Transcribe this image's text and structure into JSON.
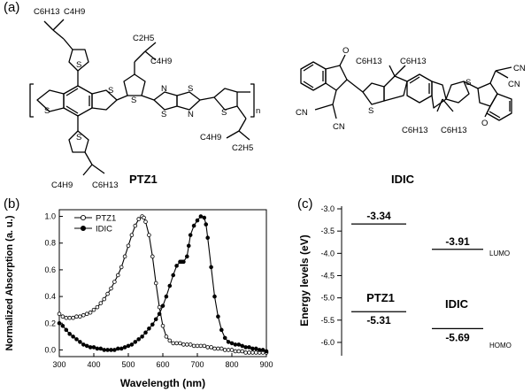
{
  "panels": {
    "a": "(a)",
    "b": "(b)",
    "c": "(c)"
  },
  "structures": {
    "ptz1": {
      "name": "PTZ1",
      "substituents": [
        "C6H13",
        "C4H9",
        "C2H5",
        "C4H9",
        "C4H9",
        "C2H5",
        "C4H9",
        "C6H13"
      ],
      "repeat": "n",
      "atoms": [
        "S",
        "S",
        "S",
        "S",
        "S",
        "N",
        "N",
        "S",
        "S",
        "S"
      ]
    },
    "idic": {
      "name": "IDIC",
      "substituents": [
        "C6H13",
        "C6H13",
        "C6H13",
        "C6H13"
      ],
      "atoms": [
        "O",
        "O",
        "S",
        "S",
        "CN",
        "CN",
        "CN",
        "CN"
      ]
    }
  },
  "chart_data": [
    {
      "type": "line",
      "xlabel": "Wavelength (nm)",
      "ylabel": "Normalized Absorption (a. u.)",
      "xlim": [
        300,
        900
      ],
      "ylim": [
        -0.05,
        1.05
      ],
      "xticks": [
        300,
        400,
        500,
        600,
        700,
        800,
        900
      ],
      "yticks": [
        0.0,
        0.2,
        0.4,
        0.6,
        0.8,
        1.0
      ],
      "xtick_labels": [
        "300",
        "400",
        "500",
        "600",
        "700",
        "800",
        "900"
      ],
      "ytick_labels": [
        "0.0",
        "0.2",
        "0.4",
        "0.6",
        "0.8",
        "1.0"
      ],
      "legend_position": "top-left",
      "grid": false,
      "series": [
        {
          "name": "PTZ1",
          "marker": "open-circle",
          "color": "#000000",
          "x": [
            300,
            310,
            320,
            330,
            340,
            350,
            360,
            370,
            380,
            390,
            400,
            410,
            420,
            430,
            440,
            450,
            460,
            470,
            480,
            490,
            500,
            510,
            520,
            530,
            540,
            545,
            550,
            560,
            570,
            580,
            590,
            600,
            610,
            620,
            630,
            640,
            650,
            660,
            670,
            680,
            690,
            700,
            710,
            720,
            730,
            740,
            750,
            760,
            770,
            780,
            790,
            800,
            810,
            820,
            830,
            840,
            850,
            860,
            870,
            880,
            890,
            900
          ],
          "y": [
            0.27,
            0.25,
            0.24,
            0.24,
            0.24,
            0.25,
            0.25,
            0.26,
            0.27,
            0.28,
            0.3,
            0.32,
            0.35,
            0.38,
            0.42,
            0.46,
            0.51,
            0.56,
            0.62,
            0.7,
            0.78,
            0.86,
            0.93,
            0.98,
            1.0,
            0.99,
            0.96,
            0.86,
            0.7,
            0.5,
            0.32,
            0.18,
            0.1,
            0.07,
            0.05,
            0.05,
            0.05,
            0.04,
            0.04,
            0.04,
            0.03,
            0.03,
            0.03,
            0.03,
            0.02,
            0.02,
            0.01,
            0.01,
            0.01,
            0.0,
            0.0,
            0.0,
            -0.01,
            -0.01,
            -0.01,
            -0.02,
            -0.02,
            -0.02,
            -0.02,
            -0.02,
            -0.02,
            -0.02
          ]
        },
        {
          "name": "IDIC",
          "marker": "filled-circle",
          "color": "#000000",
          "x": [
            300,
            310,
            320,
            330,
            340,
            350,
            360,
            370,
            380,
            390,
            400,
            410,
            420,
            430,
            440,
            450,
            460,
            470,
            480,
            490,
            500,
            510,
            520,
            530,
            540,
            550,
            560,
            570,
            580,
            590,
            600,
            610,
            620,
            630,
            640,
            650,
            655,
            660,
            670,
            675,
            680,
            690,
            700,
            710,
            720,
            725,
            730,
            740,
            750,
            760,
            770,
            780,
            790,
            800,
            810,
            820,
            830,
            840,
            850,
            860,
            870,
            880,
            890,
            900
          ],
          "y": [
            0.2,
            0.18,
            0.15,
            0.12,
            0.1,
            0.08,
            0.06,
            0.04,
            0.03,
            0.02,
            0.02,
            0.01,
            0.01,
            0.0,
            0.0,
            0.0,
            0.0,
            0.01,
            0.01,
            0.02,
            0.03,
            0.04,
            0.06,
            0.08,
            0.1,
            0.13,
            0.16,
            0.19,
            0.23,
            0.27,
            0.33,
            0.4,
            0.48,
            0.56,
            0.63,
            0.66,
            0.66,
            0.66,
            0.7,
            0.78,
            0.86,
            0.93,
            0.97,
            1.0,
            0.99,
            0.94,
            0.84,
            0.62,
            0.4,
            0.25,
            0.15,
            0.09,
            0.06,
            0.05,
            0.04,
            0.04,
            0.03,
            0.02,
            0.02,
            0.01,
            0.01,
            0.0,
            0.0,
            -0.01
          ]
        }
      ]
    },
    {
      "type": "bar",
      "ylabel": "Energy levels (eV)",
      "ylim": [
        -6.2,
        -3.0
      ],
      "yticks": [
        -3.0,
        -3.5,
        -4.0,
        -4.5,
        -5.0,
        -5.5,
        -6.0
      ],
      "ytick_labels": [
        "-3.0",
        "-3.5",
        "-4.0",
        "-4.5",
        "-5.0",
        "-5.5",
        "-6.0"
      ],
      "categories": [
        "PTZ1",
        "IDIC"
      ],
      "levels": [
        {
          "material": "PTZ1",
          "lumo": -3.34,
          "homo": -5.31,
          "lumo_label": "-3.34",
          "homo_label": "-5.31"
        },
        {
          "material": "IDIC",
          "lumo": -3.91,
          "homo": -5.69,
          "lumo_label": "-3.91",
          "homo_label": "-5.69"
        }
      ],
      "level_names": {
        "lumo": "LUMO",
        "homo": "HOMO"
      }
    }
  ]
}
